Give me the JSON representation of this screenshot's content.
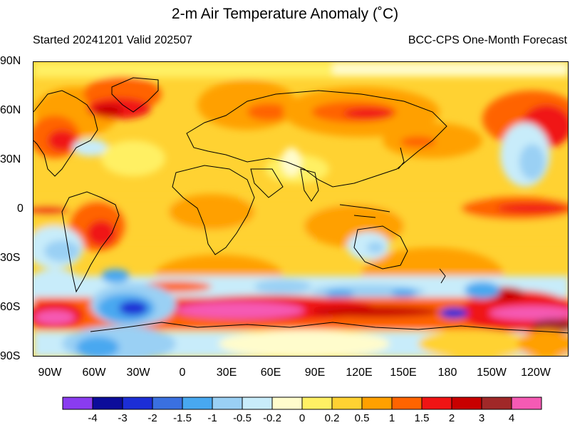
{
  "title": "2-m Air Temperature Anomaly (˚C)",
  "subtitle_left": "Started 20241201  Valid 202507",
  "subtitle_right": "BCC-CPS One-Month Forecast",
  "lat_labels": [
    "90N",
    "60N",
    "30N",
    "0",
    "30S",
    "60S",
    "90S"
  ],
  "lon_labels": [
    "90W",
    "60W",
    "30W",
    "0",
    "30E",
    "60E",
    "90E",
    "120E",
    "150E",
    "180",
    "150W",
    "120W"
  ],
  "colorbar": {
    "colors": [
      "#8a3cf0",
      "#0c0c9a",
      "#1c2ed6",
      "#3a70e0",
      "#48a8f0",
      "#9ad0f4",
      "#c8ecfa",
      "#fffccc",
      "#fff064",
      "#ffd232",
      "#ffa000",
      "#ff6400",
      "#f01414",
      "#c80000",
      "#a02828",
      "#f55ab4"
    ],
    "labels": [
      "-4",
      "-3",
      "-2",
      "-1.5",
      "-1",
      "-0.5",
      "-0.2",
      "0",
      "0.2",
      "0.5",
      "1",
      "1.5",
      "2",
      "3",
      "4"
    ]
  }
}
